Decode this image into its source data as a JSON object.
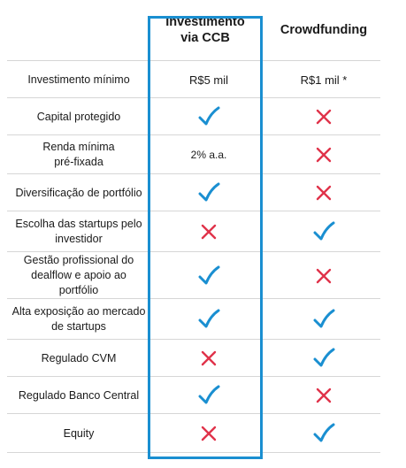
{
  "header": {
    "col1": "Investimento\nvia CCB",
    "col2": "Crowdfunding"
  },
  "colors": {
    "accent": "#1a8fd1",
    "check": "#1a8fd1",
    "cross": "#e0334a"
  },
  "rows": [
    {
      "label": "Investimento mínimo",
      "c1": {
        "text": "R$5 mil"
      },
      "c2": {
        "text": "R$1 mil *"
      }
    },
    {
      "label": "Capital protegido",
      "c1": {
        "icon": "check-icon"
      },
      "c2": {
        "icon": "cross-icon"
      }
    },
    {
      "label": "Renda mínima\npré-fixada",
      "c1": {
        "text": "2% a.a."
      },
      "c2": {
        "icon": "cross-icon"
      }
    },
    {
      "label": "Diversificação de portfólio",
      "c1": {
        "icon": "check-icon"
      },
      "c2": {
        "icon": "cross-icon"
      }
    },
    {
      "label": "Escolha das startups pelo\ninvestidor",
      "c1": {
        "icon": "cross-icon"
      },
      "c2": {
        "icon": "check-icon"
      }
    },
    {
      "label": "Gestão profissional do\ndealflow e apoio ao\nportfólio",
      "c1": {
        "icon": "check-icon"
      },
      "c2": {
        "icon": "cross-icon"
      }
    },
    {
      "label": "Alta exposição ao mercado\nde startups",
      "c1": {
        "icon": "check-icon"
      },
      "c2": {
        "icon": "check-icon"
      }
    },
    {
      "label": "Regulado CVM",
      "c1": {
        "icon": "cross-icon"
      },
      "c2": {
        "icon": "check-icon"
      }
    },
    {
      "label": "Regulado Banco Central",
      "c1": {
        "icon": "check-icon"
      },
      "c2": {
        "icon": "cross-icon"
      }
    },
    {
      "label": "Equity",
      "c1": {
        "icon": "cross-icon"
      },
      "c2": {
        "icon": "check-icon"
      }
    }
  ]
}
